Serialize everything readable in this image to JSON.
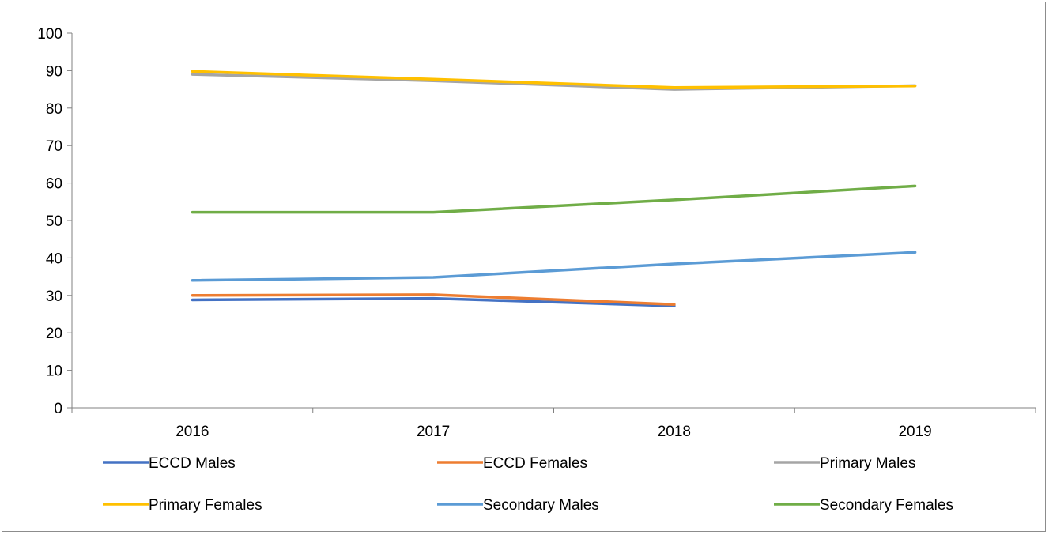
{
  "chart_data": {
    "type": "line",
    "x": [
      "2016",
      "2017",
      "2018",
      "2019"
    ],
    "ylim": [
      0,
      100
    ],
    "yticks": [
      0,
      10,
      20,
      30,
      40,
      50,
      60,
      70,
      80,
      90,
      100
    ],
    "grid": false,
    "legend_position": "bottom",
    "series": [
      {
        "name": "ECCD Males",
        "color": "#4472C4",
        "values": [
          28.8,
          29.2,
          27.2,
          null
        ]
      },
      {
        "name": "ECCD Females",
        "color": "#ED7D31",
        "values": [
          30.0,
          30.2,
          27.6,
          null
        ]
      },
      {
        "name": "Primary Males",
        "color": "#A5A5A5",
        "values": [
          89.0,
          87.3,
          85.0,
          86.0
        ]
      },
      {
        "name": "Primary Females",
        "color": "#FFC000",
        "values": [
          89.8,
          87.7,
          85.5,
          85.9
        ]
      },
      {
        "name": "Secondary Males",
        "color": "#5B9BD5",
        "values": [
          34.0,
          34.8,
          38.4,
          41.5
        ]
      },
      {
        "name": "Secondary Females",
        "color": "#70AD47",
        "values": [
          52.2,
          52.2,
          55.5,
          59.2
        ]
      }
    ]
  }
}
